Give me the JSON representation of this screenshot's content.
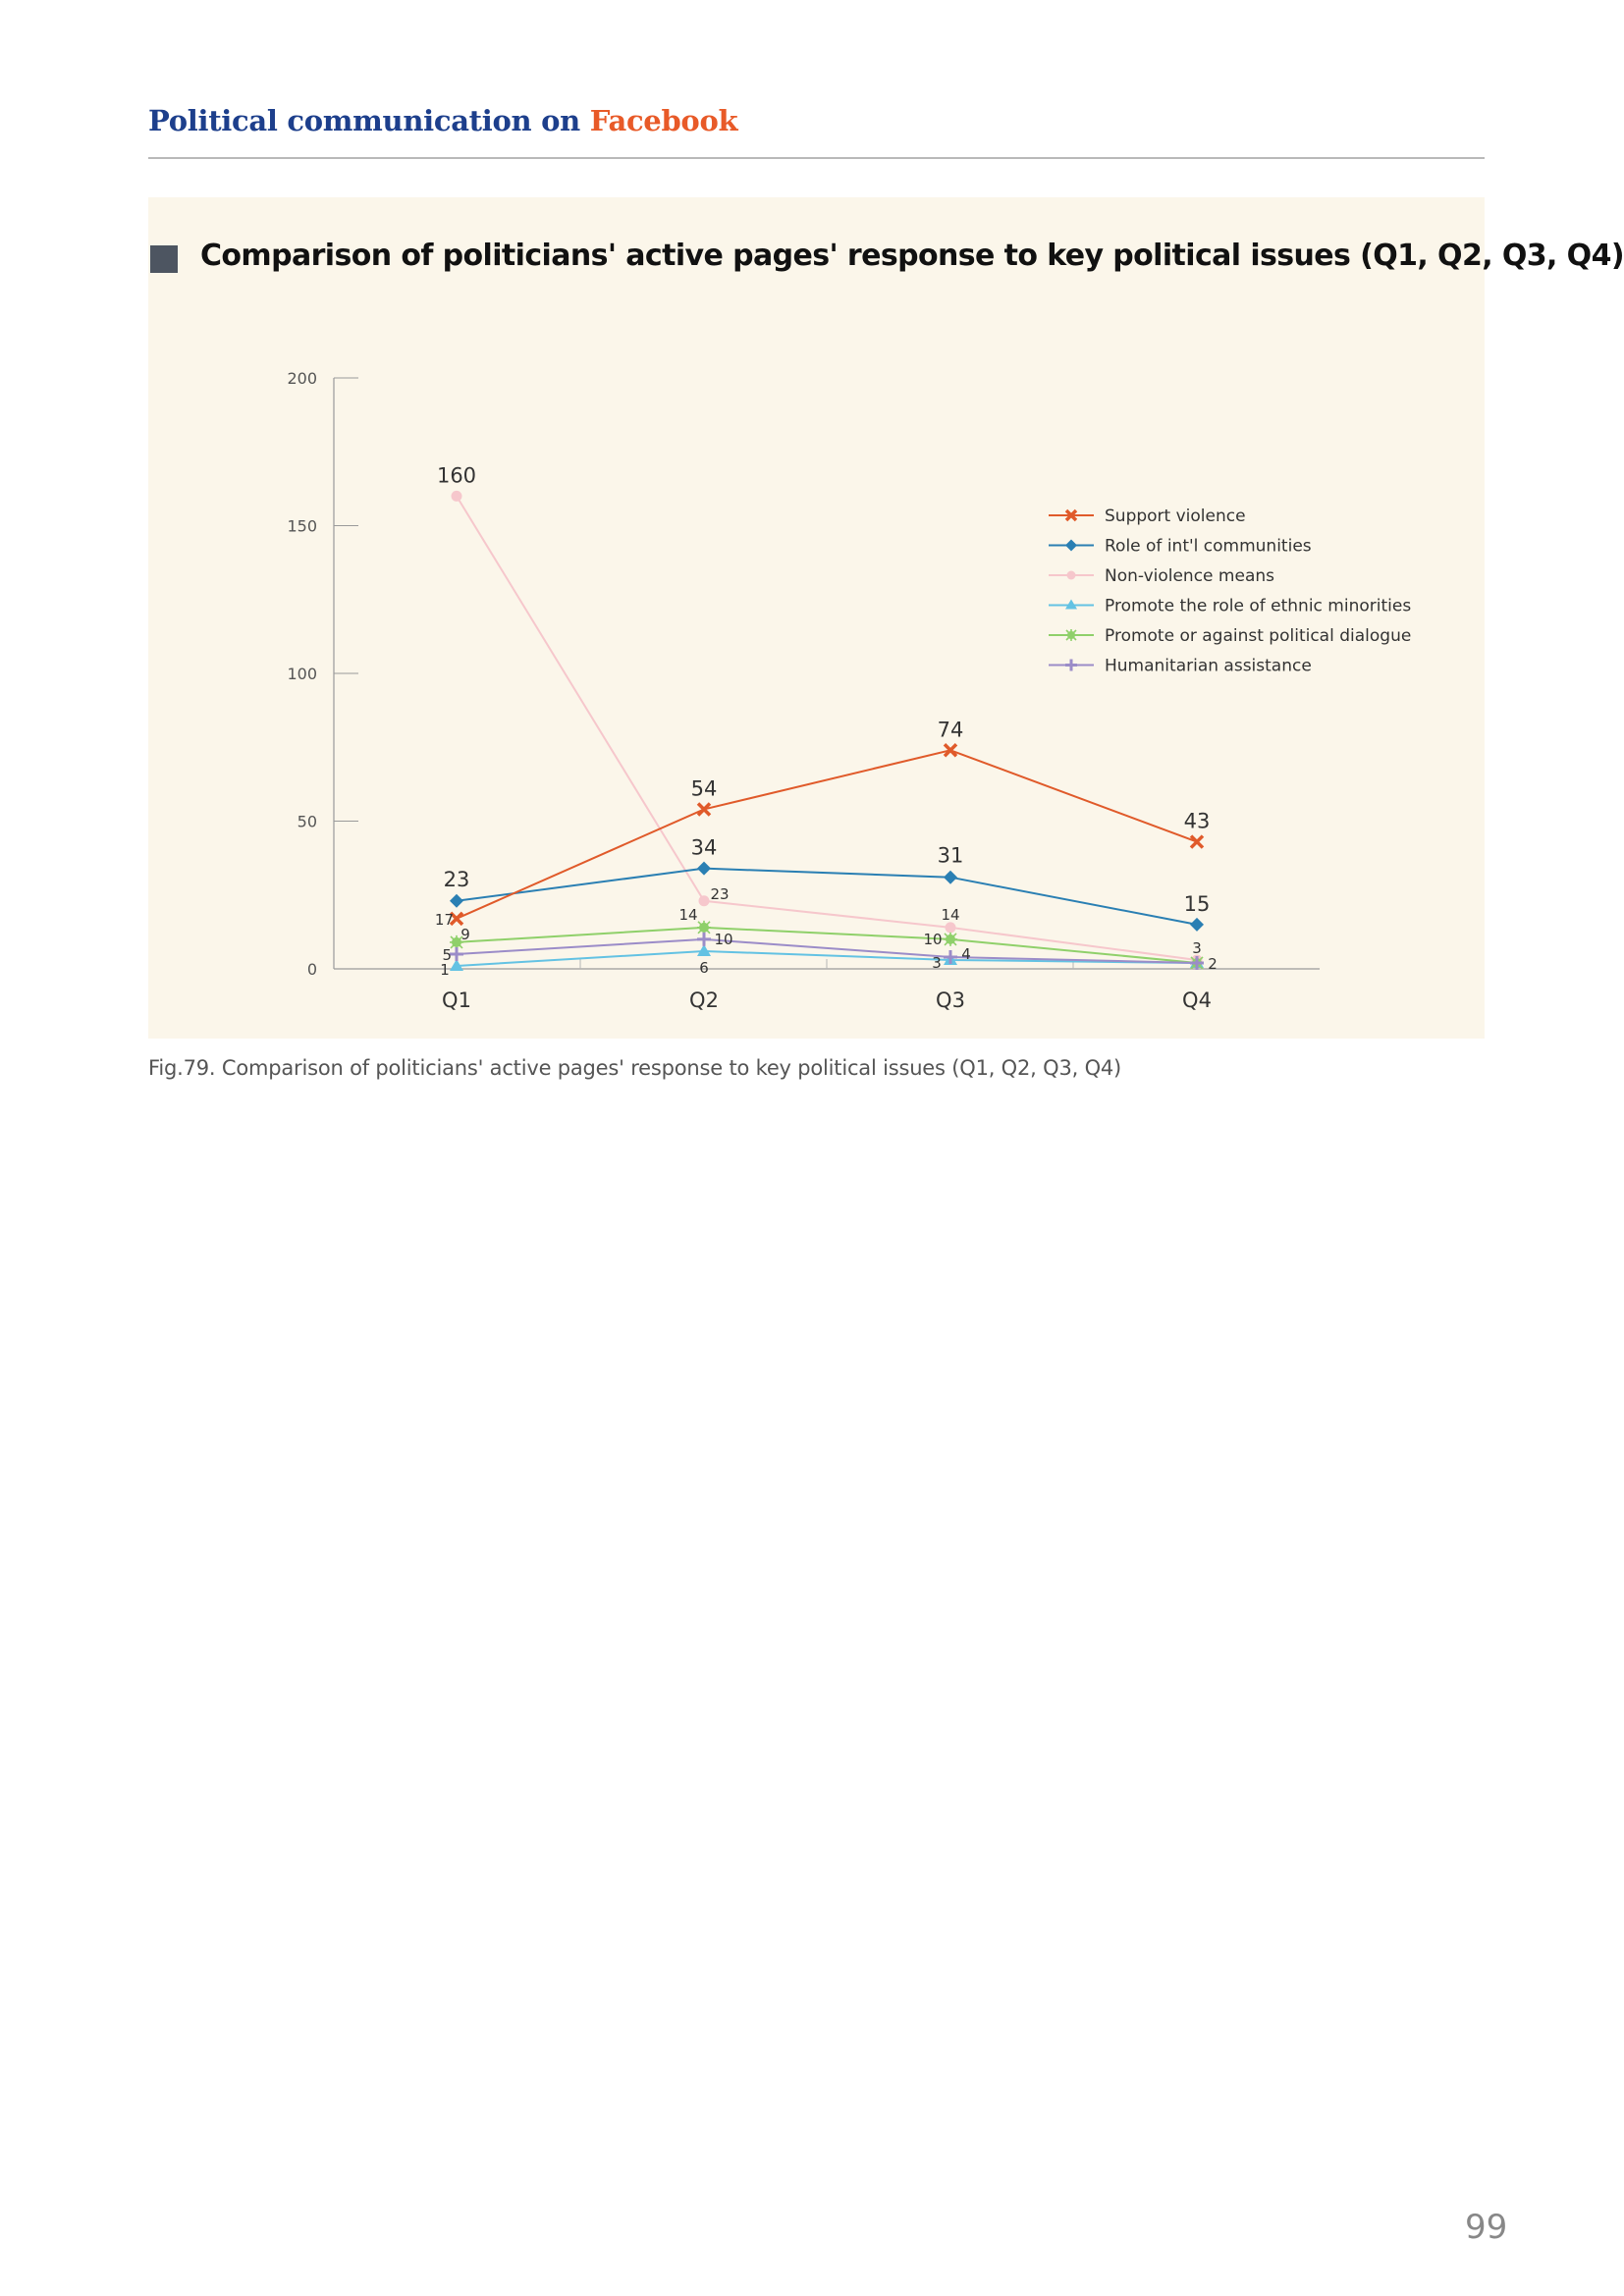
{
  "header": {
    "title_part1": "Political communication on",
    "title_part2": "Facebook"
  },
  "panel": {
    "title": "Comparison of politicians' active pages' response to key political issues (Q1, Q2, Q3, Q4)"
  },
  "caption": "Fig.79. Comparison of politicians' active pages' response to key political issues (Q1, Q2, Q3, Q4)",
  "page_number": "99",
  "chart_data": {
    "type": "line",
    "title": "Comparison of politicians' active pages' response to key political issues (Q1, Q2, Q3, Q4)",
    "xlabel": "",
    "ylabel": "",
    "categories": [
      "Q1",
      "Q2",
      "Q3",
      "Q4"
    ],
    "ylim": [
      0,
      200
    ],
    "yticks": [
      0,
      50,
      100,
      150,
      200
    ],
    "grid": false,
    "legend_position": "top-right",
    "series": [
      {
        "name": "Support violence",
        "values": [
          17,
          54,
          74,
          43
        ],
        "color": "#e05a2a",
        "marker": "x"
      },
      {
        "name": "Role of int'l communities",
        "values": [
          23,
          34,
          31,
          15
        ],
        "color": "#2a7fb3",
        "marker": "diamond"
      },
      {
        "name": "Non-violence means",
        "values": [
          160,
          23,
          14,
          3
        ],
        "color": "#f6c7cc",
        "marker": "circle"
      },
      {
        "name": "Promote the role of ethnic minorities",
        "values": [
          1,
          6,
          3,
          2
        ],
        "color": "#63c2e3",
        "marker": "triangle"
      },
      {
        "name": "Promote or against political dialogue",
        "values": [
          9,
          14,
          10,
          2
        ],
        "color": "#8fd06a",
        "marker": "star"
      },
      {
        "name": "Humanitarian assistance",
        "values": [
          5,
          10,
          4,
          2
        ],
        "color": "#9b8cc8",
        "marker": "cross"
      }
    ],
    "data_labels": [
      {
        "text": "160",
        "series": 2,
        "point": 0
      },
      {
        "text": "23",
        "series": 1,
        "point": 0
      },
      {
        "text": "17",
        "series": 0,
        "point": 0
      },
      {
        "text": "9",
        "series": 4,
        "point": 0
      },
      {
        "text": "5",
        "series": 5,
        "point": 0
      },
      {
        "text": "1",
        "series": 3,
        "point": 0
      },
      {
        "text": "54",
        "series": 0,
        "point": 1
      },
      {
        "text": "34",
        "series": 1,
        "point": 1
      },
      {
        "text": "23",
        "series": 2,
        "point": 1
      },
      {
        "text": "14",
        "series": 4,
        "point": 1
      },
      {
        "text": "10",
        "series": 5,
        "point": 1
      },
      {
        "text": "6",
        "series": 3,
        "point": 1
      },
      {
        "text": "74",
        "series": 0,
        "point": 2
      },
      {
        "text": "31",
        "series": 1,
        "point": 2
      },
      {
        "text": "14",
        "series": 2,
        "point": 2
      },
      {
        "text": "10",
        "series": 4,
        "point": 2
      },
      {
        "text": "4",
        "series": 5,
        "point": 2
      },
      {
        "text": "3",
        "series": 3,
        "point": 2
      },
      {
        "text": "43",
        "series": 0,
        "point": 3
      },
      {
        "text": "15",
        "series": 1,
        "point": 3
      },
      {
        "text": "3",
        "series": 2,
        "point": 3
      },
      {
        "text": "2",
        "series": 4,
        "point": 3
      }
    ]
  }
}
